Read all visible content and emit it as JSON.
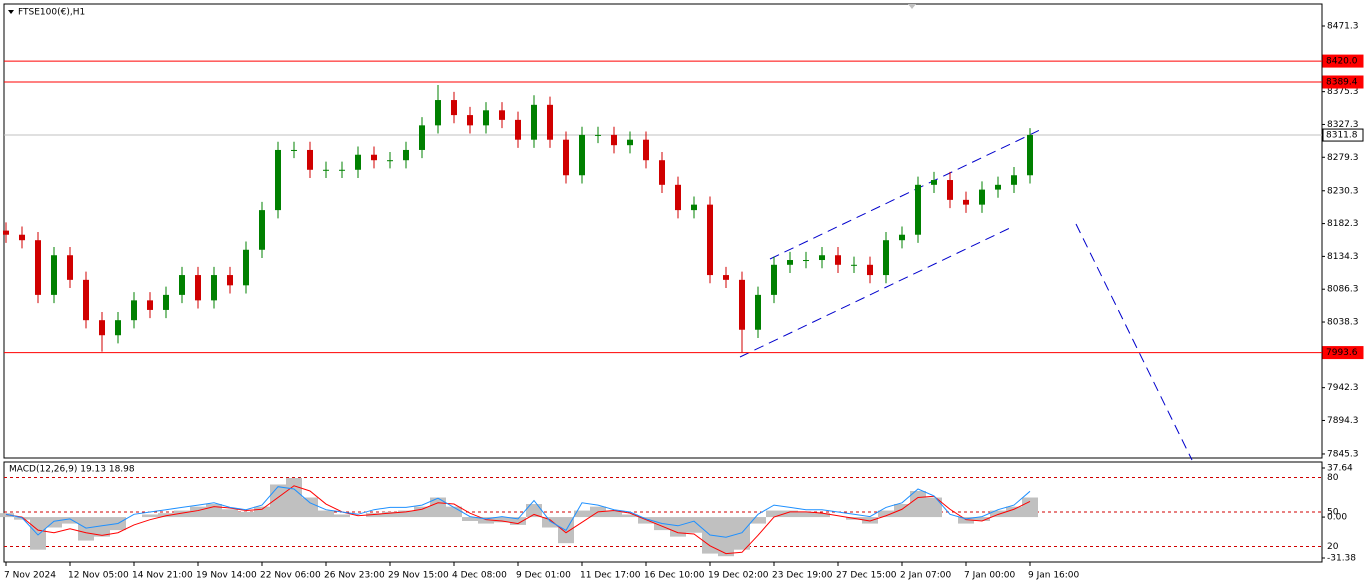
{
  "chart_data": [
    {
      "type": "candlestick",
      "title": "FTSE100(€),H1",
      "categories": [
        "7 Nov 2024",
        null,
        null,
        null,
        "12 Nov 05:00",
        null,
        null,
        null,
        "14 Nov 21:00",
        null,
        null,
        null,
        "19 Nov 14:00",
        null,
        null,
        null,
        "22 Nov 06:00",
        null,
        null,
        null,
        "26 Nov 23:00",
        null,
        null,
        null,
        "29 Nov 15:00",
        null,
        null,
        null,
        "4 Dec 08:00",
        null,
        null,
        null,
        "9 Dec 01:00",
        null,
        null,
        null,
        "11 Dec 17:00",
        null,
        null,
        null,
        "16 Dec 10:00",
        null,
        null,
        null,
        "19 Dec 02:00",
        null,
        null,
        null,
        "23 Dec 19:00",
        null,
        null,
        null,
        "27 Dec 15:00",
        null,
        null,
        null,
        "2 Jan 07:00",
        null,
        null,
        null,
        "7 Jan 00:00",
        null,
        null,
        null,
        "9 Jan 16:00"
      ],
      "open": [
        8172,
        8166,
        8158,
        8078,
        8136,
        8100,
        8041,
        8019,
        8041,
        8070,
        8056,
        8078,
        8107,
        8070,
        8107,
        8092,
        8144,
        8202,
        8290,
        8290,
        8261,
        8261,
        8261,
        8283,
        8275,
        8275,
        8290,
        8326,
        8363,
        8341,
        8326,
        8348,
        8334,
        8305,
        8356,
        8305,
        8253,
        8312,
        8312,
        8297,
        8305,
        8275,
        8239,
        8202,
        8210,
        8107,
        8100,
        8027,
        8078,
        8122,
        8129,
        8129,
        8136,
        8122,
        8122,
        8107,
        8158,
        8166,
        8239,
        8246,
        8217,
        8210,
        8232,
        8239,
        8253
      ],
      "high": [
        8184,
        8178,
        8170,
        8148,
        8148,
        8112,
        8053,
        8053,
        8082,
        8082,
        8090,
        8119,
        8119,
        8119,
        8119,
        8156,
        8214,
        8302,
        8302,
        8302,
        8273,
        8273,
        8295,
        8295,
        8287,
        8302,
        8338,
        8385,
        8375,
        8353,
        8360,
        8360,
        8346,
        8370,
        8368,
        8317,
        8324,
        8324,
        8324,
        8317,
        8317,
        8287,
        8251,
        8222,
        8222,
        8119,
        8112,
        8090,
        8134,
        8141,
        8141,
        8148,
        8148,
        8134,
        8134,
        8170,
        8178,
        8251,
        8258,
        8258,
        8229,
        8244,
        8251,
        8265,
        8322
      ],
      "low": [
        8154,
        8146,
        8066,
        8066,
        8088,
        8029,
        7995,
        8007,
        8029,
        8044,
        8044,
        8066,
        8058,
        8058,
        8080,
        8080,
        8132,
        8190,
        8278,
        8249,
        8249,
        8249,
        8249,
        8263,
        8263,
        8263,
        8278,
        8314,
        8329,
        8314,
        8314,
        8322,
        8293,
        8293,
        8293,
        8241,
        8241,
        8300,
        8285,
        8285,
        8263,
        8227,
        8190,
        8190,
        8095,
        8088,
        7994,
        8015,
        8066,
        8110,
        8117,
        8117,
        8110,
        8110,
        8095,
        8095,
        8146,
        8154,
        8227,
        8205,
        8198,
        8198,
        8220,
        8227,
        8241
      ],
      "close": [
        8166,
        8158,
        8078,
        8136,
        8100,
        8041,
        8019,
        8041,
        8070,
        8056,
        8078,
        8107,
        8070,
        8107,
        8092,
        8144,
        8202,
        8290,
        8290,
        8261,
        8261,
        8261,
        8283,
        8275,
        8275,
        8290,
        8326,
        8363,
        8341,
        8326,
        8348,
        8334,
        8305,
        8356,
        8305,
        8253,
        8312,
        8312,
        8297,
        8305,
        8275,
        8239,
        8202,
        8210,
        8107,
        8100,
        8027,
        8078,
        8122,
        8129,
        8129,
        8136,
        8122,
        8122,
        8107,
        8158,
        8166,
        8239,
        8246,
        8217,
        8210,
        8232,
        8239,
        8253,
        8312
      ],
      "up_color": "#008000",
      "down_color": "#d00000",
      "ylim": [
        7839.4,
        8503.5
      ],
      "yticks": [
        8471.3,
        8375.3,
        8327.3,
        8279.3,
        8230.3,
        8182.3,
        8134.3,
        8086.3,
        8038.3,
        7942.3,
        7894.3,
        7845.3
      ],
      "levels": [
        {
          "value": 8420.0,
          "label": "8420.0",
          "color": "#ff0000"
        },
        {
          "value": 8389.4,
          "label": "8389.4",
          "color": "#ff0000"
        },
        {
          "value": 8311.8,
          "label": "8311.8",
          "color": "#c0c0c0"
        },
        {
          "value": 7993.6,
          "label": "7993.6",
          "color": "#ff0000"
        }
      ]
    },
    {
      "type": "macd",
      "title": "MACD(12,26,9) 19.13 18.98",
      "ylim": [
        -34.45,
        42.24
      ],
      "yticks": [
        37.64,
        {
          "value": 0,
          "label": "0.00"
        },
        -31.38
      ],
      "y2lim": [
        6.5,
        93.5
      ],
      "y2ticks": [
        80,
        50,
        20
      ],
      "series": [
        {
          "color": "#c0c0c0",
          "values": [
            3,
            -2,
            -25,
            -8,
            -5,
            -18,
            -15,
            -10,
            0,
            2,
            3,
            5,
            8,
            10,
            6,
            4,
            8,
            25,
            30,
            15,
            5,
            2,
            0,
            3,
            4,
            5,
            8,
            15,
            8,
            -3,
            -5,
            -4,
            -6,
            10,
            -8,
            -20,
            5,
            8,
            5,
            2,
            -5,
            -10,
            -15,
            -12,
            -28,
            -30,
            -25,
            -5,
            5,
            5,
            4,
            3,
            0,
            -2,
            -5,
            5,
            10,
            20,
            15,
            0,
            -5,
            -3,
            5,
            8,
            15
          ]
        },
        {
          "color": "#ff0000",
          "values": [
            2,
            0,
            -10,
            -12,
            -9,
            -12,
            -14,
            -12,
            -6,
            -2,
            1,
            3,
            5,
            8,
            7,
            5,
            6,
            15,
            24,
            20,
            10,
            4,
            1,
            2,
            3,
            4,
            6,
            11,
            10,
            3,
            -2,
            -3,
            -5,
            2,
            -2,
            -12,
            -4,
            4,
            5,
            3,
            -2,
            -7,
            -12,
            -13,
            -22,
            -28,
            -27,
            -14,
            0,
            4,
            4,
            3,
            1,
            -1,
            -3,
            1,
            6,
            15,
            16,
            6,
            -2,
            -3,
            2,
            6,
            12
          ]
        },
        {
          "color": "#1e90ff",
          "axis": "y2",
          "values": [
            48,
            45,
            30,
            42,
            44,
            36,
            38,
            40,
            48,
            50,
            52,
            54,
            56,
            58,
            54,
            52,
            56,
            72,
            70,
            58,
            52,
            50,
            48,
            52,
            54,
            54,
            56,
            62,
            54,
            46,
            44,
            46,
            44,
            60,
            42,
            34,
            58,
            56,
            52,
            50,
            44,
            40,
            38,
            42,
            30,
            28,
            32,
            48,
            56,
            54,
            52,
            52,
            50,
            48,
            46,
            54,
            58,
            70,
            64,
            48,
            44,
            46,
            52,
            56,
            68
          ]
        }
      ]
    }
  ]
}
